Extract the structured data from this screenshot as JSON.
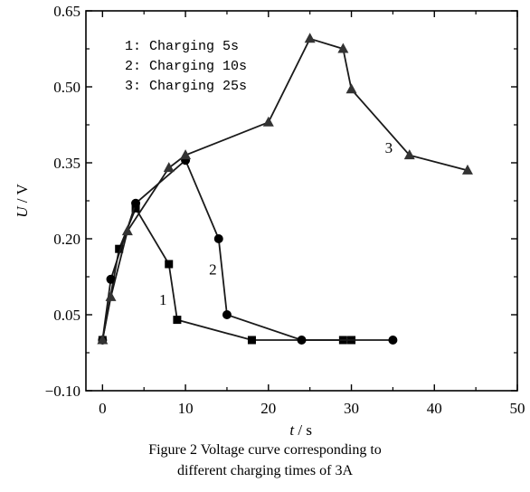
{
  "chart_data": {
    "type": "line",
    "title": "",
    "xlabel": "t / s",
    "ylabel": "U / V",
    "xlim": [
      -2,
      50
    ],
    "ylim": [
      -0.1,
      0.65
    ],
    "x_ticks": [
      0,
      10,
      20,
      30,
      40,
      50
    ],
    "y_ticks": [
      -0.1,
      0.05,
      0.2,
      0.35,
      0.5,
      0.65
    ],
    "x_tick_labels": [
      "0",
      "10",
      "20",
      "30",
      "40",
      "50"
    ],
    "y_tick_labels": [
      "−0.10",
      "0.05",
      "0.20",
      "0.35",
      "0.50",
      "0.65"
    ],
    "legend_position": "top-left",
    "legend": [
      "1: Charging 5s",
      "2: Charging 10s",
      "3: Charging 25s"
    ],
    "grid": false,
    "series": [
      {
        "name": "1",
        "marker": "square",
        "x": [
          0,
          2,
          4,
          8,
          9,
          18,
          29,
          30
        ],
        "y": [
          0.0,
          0.18,
          0.26,
          0.15,
          0.04,
          0.0,
          0.0,
          0.0
        ]
      },
      {
        "name": "2",
        "marker": "circle",
        "x": [
          0,
          1,
          4,
          10,
          14,
          15,
          24,
          35
        ],
        "y": [
          0.0,
          0.12,
          0.27,
          0.355,
          0.2,
          0.05,
          0.0,
          0.0
        ]
      },
      {
        "name": "3",
        "marker": "triangle",
        "x": [
          0,
          1,
          3,
          8,
          10,
          20,
          25,
          29,
          30,
          37,
          44
        ],
        "y": [
          0.0,
          0.085,
          0.215,
          0.34,
          0.365,
          0.43,
          0.595,
          0.575,
          0.495,
          0.365,
          0.335
        ]
      }
    ],
    "curve_labels": [
      {
        "text": "1",
        "x": 7.3,
        "y": 0.08
      },
      {
        "text": "2",
        "x": 13.3,
        "y": 0.14
      },
      {
        "text": "3",
        "x": 34.5,
        "y": 0.38
      }
    ]
  },
  "caption": {
    "line1": "Figure 2 Voltage curve corresponding to",
    "line2": "different charging times of 3A"
  }
}
